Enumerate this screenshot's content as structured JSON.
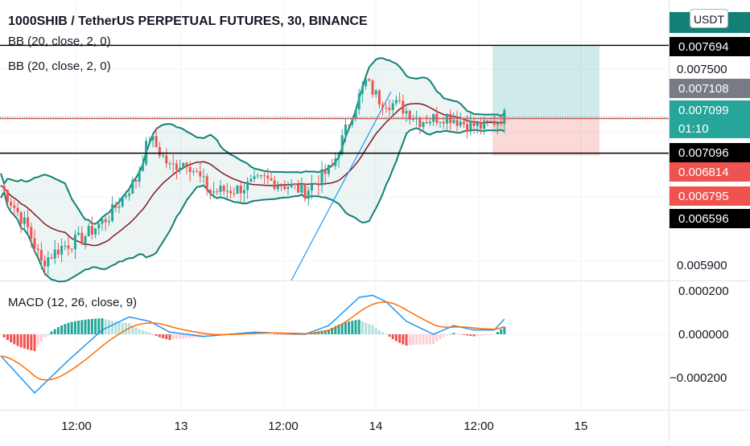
{
  "chart_title": "1000SHIB / TetherUS PERPETUAL FUTURES, 30, BINANCE",
  "indicators": [
    "BB (20, close, 2, 0)",
    "BB (20, close, 2, 0)"
  ],
  "currency_button": "USDT",
  "macd_label": "MACD (12, 26, close, 9)",
  "chart_data": [
    {
      "type": "candlestick",
      "title": "1000SHIB / TetherUS PERPETUAL FUTURES, 30, BINANCE",
      "y_ticks": [
        "0.007500",
        "0.005900"
      ],
      "x_ticks": [
        "12:00",
        "13",
        "12:00",
        "14",
        "12:00",
        "15"
      ],
      "price_labels": [
        {
          "text": "0.007694",
          "value": 0.007694,
          "bg": "#000000",
          "fg": "#ffffff"
        },
        {
          "text": "0.007108",
          "value": 0.007108,
          "bg": "#787b86",
          "fg": "#ffffff"
        },
        {
          "text": "0.007099",
          "value": 0.007099,
          "bg": "#26a69a",
          "fg": "#ffffff"
        },
        {
          "text": "01:10",
          "value": 0.007099,
          "bg": "#26a69a",
          "fg": "#ffffff"
        },
        {
          "text": "0.007096",
          "value": 0.007096,
          "bg": "#000000",
          "fg": "#ffffff"
        },
        {
          "text": "0.006814",
          "value": 0.006814,
          "bg": "#ef5350",
          "fg": "#ffffff"
        },
        {
          "text": "0.006795",
          "value": 0.006795,
          "bg": "#ef5350",
          "fg": "#ffffff"
        },
        {
          "text": "0.006596",
          "value": 0.006596,
          "bg": "#000000",
          "fg": "#ffffff"
        }
      ],
      "horizontal_lines": [
        {
          "value": 0.007694,
          "color": "#000000"
        },
        {
          "value": 0.007096,
          "color": "#ef5350"
        },
        {
          "value": 0.006814,
          "color": "#000000"
        }
      ],
      "position_tool": {
        "entry": 0.007099,
        "target": 0.007694,
        "stop": 0.006795
      },
      "colors": {
        "up": "#26a69a",
        "down": "#ef5350",
        "bb": "#138076",
        "basis": "#801922"
      }
    },
    {
      "type": "line",
      "title": "MACD (12, 26, close, 9)",
      "y_ticks": [
        "0.000200",
        "0.000000",
        "−0.000200"
      ],
      "series": [
        {
          "name": "MACD",
          "color": "#2196f3"
        },
        {
          "name": "Signal",
          "color": "#ff6d00"
        }
      ]
    }
  ]
}
